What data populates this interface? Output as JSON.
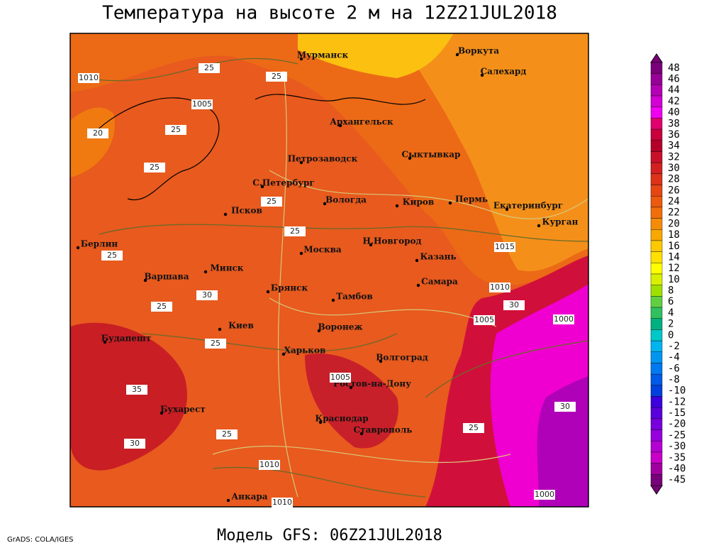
{
  "header": {
    "title": "Температура на высоте 2 м на 12Z21JUL2018"
  },
  "footer": {
    "model": "Модель GFS: 06Z21JUL2018",
    "credit": "GrADS: COLA/IGES"
  },
  "cities": [
    "Мурманск",
    "Воркута",
    "Салехард",
    "Архангельск",
    "Петрозаводск",
    "Сыктывкар",
    "С.Петербург",
    "Вологда",
    "Киров",
    "Пермь",
    "Екатеринбург",
    "Курган",
    "Псков",
    "Берлин",
    "Н.Новгород",
    "Москва",
    "Казань",
    "Варшава",
    "Минск",
    "Самара",
    "Брянск",
    "Тамбов",
    "Киев",
    "Воронеж",
    "Будапешт",
    "Харьков",
    "Волгоград",
    "Ростов-на-Дону",
    "Бухарест",
    "Краснодар",
    "Ставрополь",
    "Анкара"
  ],
  "isobar_labels": [
    1010,
    1005,
    1015,
    1010,
    1005,
    1000,
    1010,
    1000,
    1005,
    1010
  ],
  "temperature_labels": [
    25,
    25,
    25,
    25,
    20,
    25,
    25,
    25,
    30,
    30,
    30,
    25,
    25,
    25,
    35,
    30,
    25
  ],
  "colorbar": {
    "levels": [
      48,
      46,
      44,
      42,
      40,
      38,
      36,
      34,
      32,
      30,
      28,
      26,
      24,
      22,
      20,
      18,
      16,
      14,
      12,
      10,
      8,
      6,
      4,
      2,
      0,
      -2,
      -4,
      -6,
      -8,
      -10,
      -12,
      -15,
      -20,
      -25,
      -30,
      -35,
      -40,
      -45
    ],
    "colors": [
      "#7a007a",
      "#960096",
      "#b400b4",
      "#d200d2",
      "#f000f0",
      "#e0006e",
      "#c8003c",
      "#b40028",
      "#c8102a",
      "#d22020",
      "#dc3218",
      "#e64614",
      "#ec5a10",
      "#f06e0c",
      "#f48c08",
      "#f8a800",
      "#fcc800",
      "#ffe000",
      "#ffff00",
      "#d8f000",
      "#a0e000",
      "#60d040",
      "#30c060",
      "#00b080",
      "#00c8c8",
      "#00b4f0",
      "#0096f0",
      "#0078f0",
      "#005ae6",
      "#0040dc",
      "#3c00dc",
      "#5a00dc",
      "#7800dc",
      "#9600dc",
      "#b400d2",
      "#c800c8",
      "#a000a0",
      "#780078"
    ]
  }
}
